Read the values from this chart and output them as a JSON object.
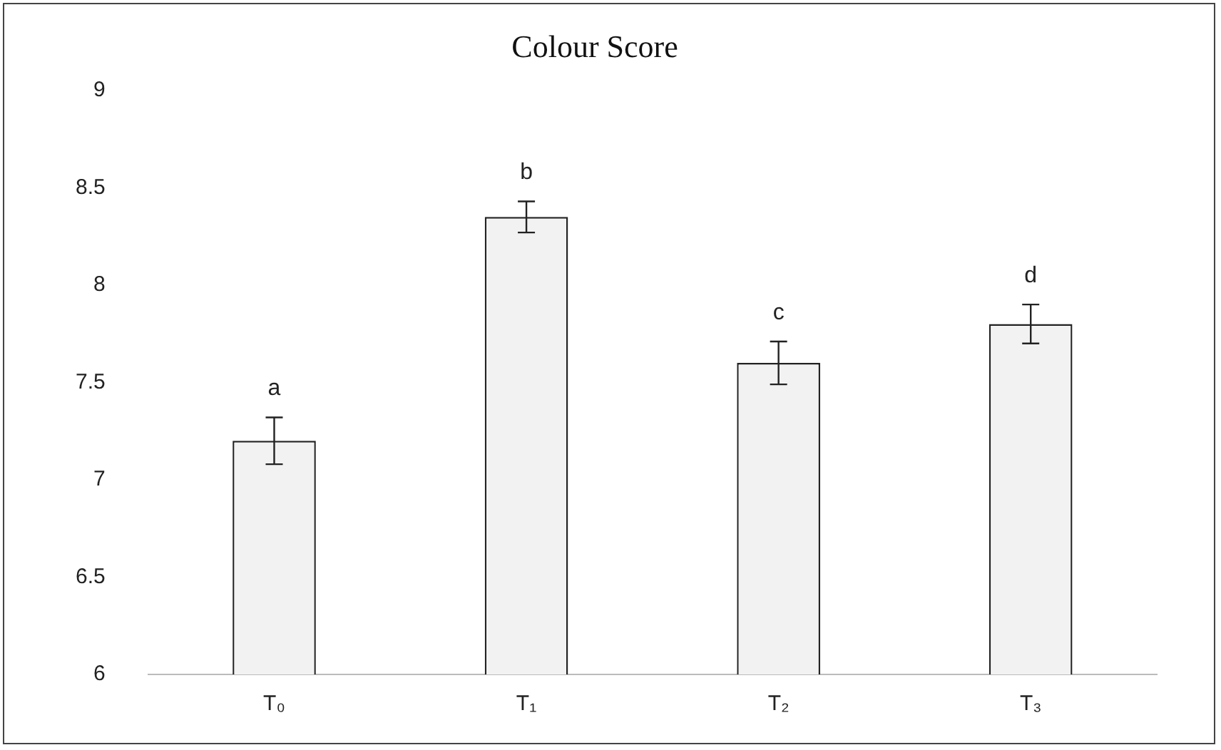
{
  "chart_data": {
    "type": "bar",
    "title": "Colour Score",
    "categories": [
      "T₀",
      "T₁",
      "T₂",
      "T₃"
    ],
    "values": [
      7.2,
      8.35,
      7.6,
      7.8
    ],
    "errors": [
      0.12,
      0.08,
      0.11,
      0.1
    ],
    "color": "#f2f2f2",
    "ylim": [
      6,
      9
    ],
    "yticks": [
      6,
      6.5,
      7,
      7.5,
      8,
      8.5,
      9
    ],
    "grid": false,
    "legend": false,
    "annotations": [
      "a",
      "b",
      "c",
      "d"
    ]
  }
}
